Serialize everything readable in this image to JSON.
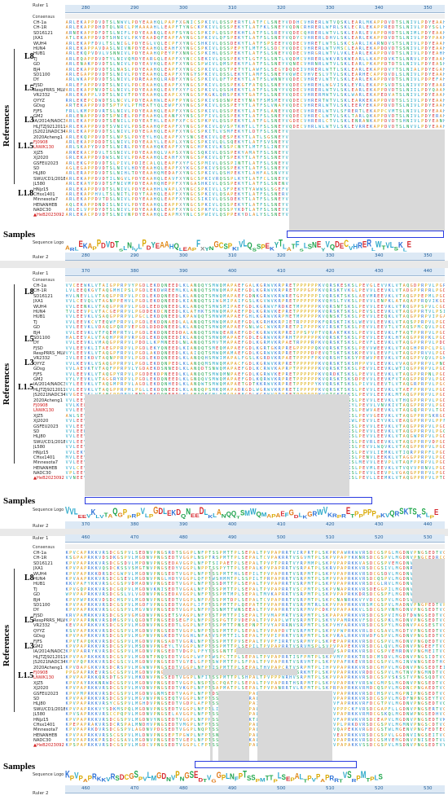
{
  "labels": {
    "ruler1": "Ruler 1",
    "ruler2": "Ruler 2",
    "consensus": "Consensus",
    "sequence_logo": "Sequence Logo",
    "references": "References",
    "samples": "Samples",
    "groups": [
      "L8",
      "L5",
      "L3",
      "L1.5",
      "L1.8"
    ]
  },
  "sample_name": "HeB2023092",
  "sequence_names": [
    "CH-1a",
    "CH-1R",
    "SD16121",
    "JXA1",
    "WUH4",
    "HUN4",
    "HUB1",
    "TJ",
    "GD",
    "BJ4",
    "SD1100",
    "DY",
    "FJSD",
    "RespPRRS_MLV",
    "VR2332",
    "QYYZ",
    "GDsg",
    "FJFS",
    "GM2",
    "IA/2014/NADC34",
    "HLJTZJ9212011",
    "JS2021NADC34",
    "2020Acheng1",
    "FJ0908",
    "LNWK130",
    "XJZ5",
    "XJ2020",
    "GSFEU2023",
    "SD",
    "HLJ80",
    "SWU/CD1/2018",
    "JL580",
    "HNjz15",
    "CHsx1401",
    "Minnesota7",
    "HENANHEB",
    "NADC30"
  ],
  "red_names": [
    "FJ0908",
    "LNWK130"
  ],
  "panels": [
    {
      "ruler_ticks": [
        "280",
        "290",
        "300",
        "310",
        "320",
        "330",
        "340",
        "350"
      ],
      "logo": "ARLEKAPPDVDTSLNIVLPDYEAAHQLEAPFXYNGCSPKIVLQSSPEKYTLATFSLSNEYVQDECVHRERLWTVLSKLE",
      "seed": 3
    },
    {
      "ruler_ticks": [
        "370",
        "380",
        "390",
        "400",
        "410",
        "420",
        "430",
        "440"
      ],
      "logo": "VVLEEVKLVTAQGPPRPVLPGDLEKDQNEEDLKLANQQTSMWQMAPAEFGDLKGRWVKRPRETPPPPPPKVQRSKTSKSLPE",
      "seed": 7
    },
    {
      "ruler_ticks": [
        "460",
        "470",
        "480",
        "490",
        "500",
        "510",
        "520",
        "530"
      ],
      "logo": "KPVPAPRKKVRSDCGSPVLMGDNVPNGSEDTVGGPLNFPTSSPMTTPLSEPALTPVPAPRRTVSRPMTPLS",
      "seed": 11
    }
  ]
}
